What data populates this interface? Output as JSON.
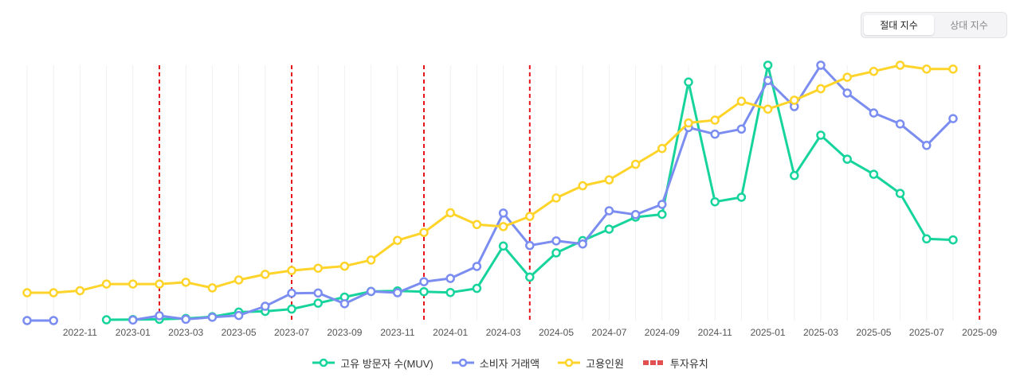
{
  "toggle": {
    "absolute_label": "절대 지수",
    "relative_label": "상대 지수",
    "active": "absolute"
  },
  "colors": {
    "muv": "#17d49c",
    "transaction": "#7b8df0",
    "employees": "#ffd42a",
    "investment": "#e8141c",
    "grid": "#f0f0f0"
  },
  "legend": {
    "muv": "고유 방문자 수(MUV)",
    "transaction": "소비자 거래액",
    "employees": "고용인원",
    "investment": "투자유치"
  },
  "chart_data": {
    "type": "line",
    "title": "",
    "x": [
      "2022-09",
      "2022-10",
      "2022-11",
      "2022-12",
      "2023-01",
      "2023-02",
      "2023-03",
      "2023-04",
      "2023-05",
      "2023-06",
      "2023-07",
      "2023-08",
      "2023-09",
      "2023-10",
      "2023-11",
      "2023-12",
      "2024-01",
      "2024-02",
      "2024-03",
      "2024-04",
      "2024-05",
      "2024-06",
      "2024-07",
      "2024-08",
      "2024-09",
      "2024-10",
      "2024-11",
      "2024-12",
      "2025-01",
      "2025-02",
      "2025-03",
      "2025-04",
      "2025-05",
      "2025-06",
      "2025-07",
      "2025-08",
      "2025-09"
    ],
    "x_tick_labels": [
      "2022-11",
      "2023-01",
      "2023-03",
      "2023-05",
      "2023-07",
      "2023-09",
      "2023-11",
      "2024-01",
      "2024-03",
      "2024-05",
      "2024-07",
      "2024-09",
      "2024-11",
      "2025-01",
      "2025-03",
      "2025-05",
      "2025-07",
      "2025-09"
    ],
    "ylim": [
      0,
      100
    ],
    "series": [
      {
        "name": "고유 방문자 수(MUV)",
        "key": "muv",
        "values": [
          null,
          null,
          null,
          0.3,
          0.4,
          0.5,
          0.8,
          1.5,
          3.3,
          3.6,
          4.5,
          6.8,
          9.2,
          11.4,
          11.6,
          11.3,
          11.0,
          12.6,
          29.2,
          17.0,
          26.5,
          31.3,
          35.8,
          40.5,
          41.6,
          93.4,
          46.5,
          48.3,
          100,
          56.8,
          72.6,
          63.2,
          57.3,
          49.8,
          32.0,
          31.6,
          null
        ]
      },
      {
        "name": "소비자 거래액",
        "key": "transaction",
        "values": [
          0,
          0,
          null,
          null,
          0.2,
          1.9,
          0.5,
          1.3,
          2.0,
          5.6,
          10.7,
          10.8,
          6.6,
          11.4,
          10.9,
          15.2,
          16.5,
          21.2,
          42.1,
          29.4,
          31.2,
          30.0,
          43.0,
          41.5,
          45.5,
          75.6,
          73.0,
          75.0,
          94.0,
          83.8,
          100,
          89.1,
          81.3,
          77.0,
          68.6,
          79.1,
          null
        ]
      },
      {
        "name": "고용인원",
        "key": "employees",
        "values": [
          10.9,
          10.9,
          11.7,
          14.3,
          14.3,
          14.3,
          15.0,
          12.8,
          15.9,
          18.1,
          19.6,
          20.5,
          21.3,
          23.7,
          31.4,
          34.5,
          42.2,
          37.6,
          36.8,
          40.8,
          48.0,
          52.8,
          55.1,
          61.2,
          67.4,
          77.4,
          78.5,
          85.9,
          82.8,
          86.3,
          90.8,
          95.3,
          97.6,
          100,
          98.5,
          98.5,
          null
        ]
      }
    ],
    "investment_events": [
      "2023-02",
      "2023-07",
      "2023-12",
      "2024-04",
      "2025-09"
    ],
    "legend_position": "bottom-center",
    "grid": true
  }
}
